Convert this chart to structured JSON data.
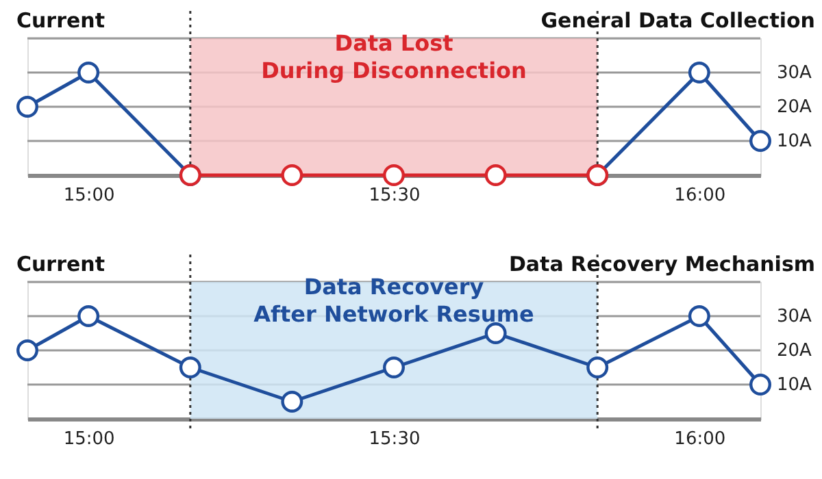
{
  "chart_data": [
    {
      "type": "line",
      "title": "General Data Collection",
      "ylabel": "Current",
      "xlim": [
        14.9,
        16.1
      ],
      "ylim": [
        0,
        40
      ],
      "xticks": [
        {
          "value": 15,
          "label": "15:00"
        },
        {
          "value": 15.5,
          "label": "15:30"
        },
        {
          "value": 16,
          "label": "16:00"
        }
      ],
      "yticks": [
        {
          "value": 10,
          "label": "10A"
        },
        {
          "value": 20,
          "label": "20A"
        },
        {
          "value": 30,
          "label": "30A"
        },
        {
          "value": 40,
          "label": null
        }
      ],
      "grid": "y",
      "marker": "circle",
      "series": [
        {
          "color": "#1f4e9c",
          "x": [
            14.9,
            15,
            15.1667
          ],
          "values": [
            20,
            30,
            0
          ]
        },
        {
          "color": "#1f4e9c",
          "x": [
            15.8333,
            16,
            16.1
          ],
          "values": [
            0,
            30,
            10
          ]
        },
        {
          "color": "#d9262c",
          "x": [
            15.1667,
            15.3333,
            15.5,
            15.6667,
            15.8333
          ],
          "values": [
            0,
            0,
            0,
            0,
            0
          ]
        }
      ],
      "bands": [
        {
          "axis": "x",
          "from": 15.1667,
          "to": 15.8333,
          "label": "Data Lost\nDuring Disconnection",
          "color": "#f6c4c7"
        }
      ],
      "ref_lines": [
        {
          "axis": "x",
          "value": 15.1667,
          "line_style": "dotted",
          "color": "#333333"
        },
        {
          "axis": "x",
          "value": 15.8333,
          "line_style": "dotted",
          "color": "#333333"
        }
      ]
    },
    {
      "type": "line",
      "title": "Data Recovery Mechanism",
      "ylabel": "Current",
      "xlim": [
        14.9,
        16.1
      ],
      "ylim": [
        0,
        40
      ],
      "xticks": [
        {
          "value": 15,
          "label": "15:00"
        },
        {
          "value": 15.5,
          "label": "15:30"
        },
        {
          "value": 16,
          "label": "16:00"
        }
      ],
      "yticks": [
        {
          "value": 10,
          "label": "10A"
        },
        {
          "value": 20,
          "label": "20A"
        },
        {
          "value": 30,
          "label": "30A"
        },
        {
          "value": 40,
          "label": null
        }
      ],
      "grid": "y",
      "marker": "circle",
      "series": [
        {
          "color": "#1f4e9c",
          "x": [
            14.9,
            15,
            15.1667,
            15.3333,
            15.5,
            15.6667,
            15.8333,
            16,
            16.1
          ],
          "values": [
            20,
            30,
            15,
            5,
            15,
            25,
            15,
            30,
            10
          ]
        }
      ],
      "bands": [
        {
          "axis": "x",
          "from": 15.1667,
          "to": 15.8333,
          "label": "Data Recovery\nAfter Network Resume",
          "color": "#cfe5f5"
        }
      ],
      "ref_lines": [
        {
          "axis": "x",
          "value": 15.1667,
          "line_style": "dotted",
          "color": "#333333"
        },
        {
          "axis": "x",
          "value": 15.8333,
          "line_style": "dotted",
          "color": "#333333"
        }
      ]
    }
  ]
}
